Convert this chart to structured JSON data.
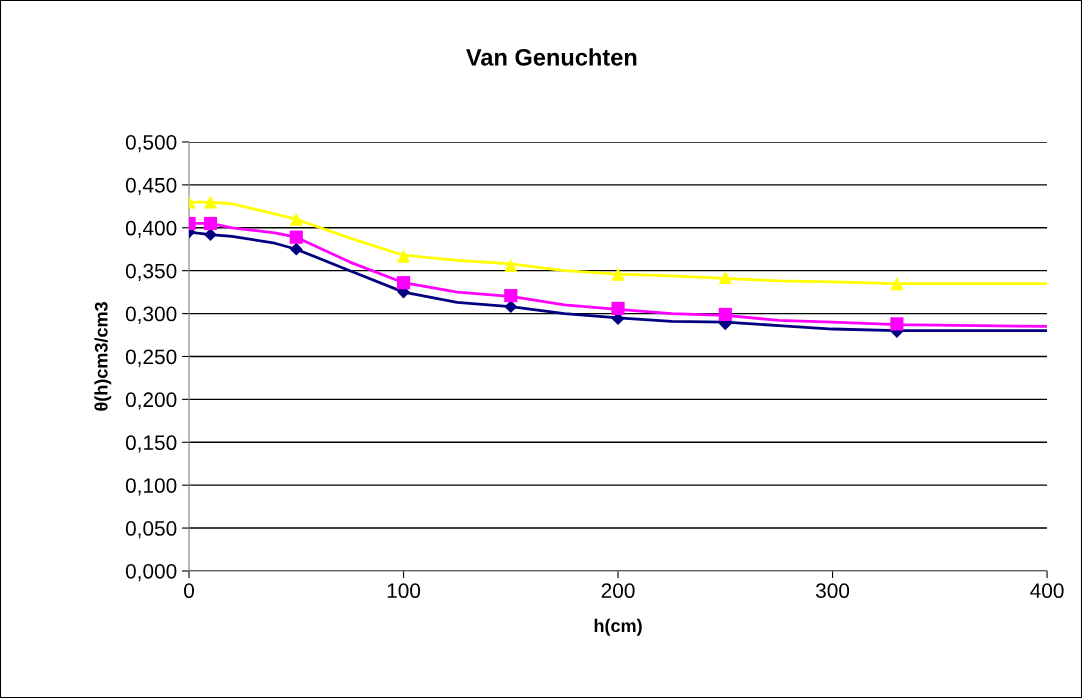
{
  "chart_data": {
    "type": "scatter",
    "title": "Van Genuchten",
    "xlabel": "h(cm)",
    "ylabel": "θ(h)cm3/cm3",
    "xlim": [
      0,
      400
    ],
    "xticks": [
      0,
      100,
      200,
      300,
      400
    ],
    "ylim": [
      0,
      0.5
    ],
    "yticks": [
      {
        "value": 0,
        "label": "0,000"
      },
      {
        "value": 0.05,
        "label": "0,050"
      },
      {
        "value": 0.1,
        "label": "0,100"
      },
      {
        "value": 0.15,
        "label": "0,150"
      },
      {
        "value": 0.2,
        "label": "0,200"
      },
      {
        "value": 0.25,
        "label": "0,250"
      },
      {
        "value": 0.3,
        "label": "0,300"
      },
      {
        "value": 0.35,
        "label": "0,350"
      },
      {
        "value": 0.4,
        "label": "0,400"
      },
      {
        "value": 0.45,
        "label": "0,450"
      },
      {
        "value": 0.5,
        "label": "0,500"
      }
    ],
    "grid": "y",
    "legend": false,
    "series": [
      {
        "type": "line",
        "marker": "none",
        "color": "#000080",
        "x": [
          0,
          10,
          20,
          40,
          50,
          75,
          100,
          125,
          150,
          175,
          200,
          225,
          250,
          275,
          300,
          330,
          400
        ],
        "values": [
          0.395,
          0.392,
          0.39,
          0.382,
          0.375,
          0.35,
          0.325,
          0.313,
          0.308,
          0.3,
          0.295,
          0.291,
          0.29,
          0.286,
          0.282,
          0.28,
          0.28
        ]
      },
      {
        "type": "line",
        "marker": "none",
        "color": "#ff00ff",
        "x": [
          0,
          10,
          20,
          40,
          50,
          75,
          100,
          125,
          150,
          175,
          200,
          225,
          250,
          275,
          300,
          330,
          400
        ],
        "values": [
          0.405,
          0.405,
          0.4,
          0.394,
          0.389,
          0.36,
          0.336,
          0.325,
          0.32,
          0.31,
          0.305,
          0.3,
          0.298,
          0.292,
          0.29,
          0.287,
          0.285
        ]
      },
      {
        "type": "line",
        "marker": "none",
        "color": "#ffff00",
        "x": [
          0,
          10,
          20,
          50,
          75,
          100,
          125,
          150,
          175,
          200,
          225,
          250,
          275,
          300,
          330,
          400
        ],
        "values": [
          0.43,
          0.43,
          0.428,
          0.41,
          0.388,
          0.368,
          0.362,
          0.358,
          0.35,
          0.346,
          0.344,
          0.341,
          0.338,
          0.337,
          0.335,
          0.335
        ]
      },
      {
        "marker": "diamond",
        "color": "#000080",
        "x": [
          0,
          10,
          50,
          100,
          150,
          200,
          250,
          330
        ],
        "values": [
          0.395,
          0.392,
          0.375,
          0.325,
          0.308,
          0.294,
          0.288,
          0.279
        ]
      },
      {
        "marker": "square",
        "color": "#ff00ff",
        "x": [
          0,
          10,
          50,
          100,
          150,
          200,
          250,
          330
        ],
        "values": [
          0.405,
          0.405,
          0.389,
          0.336,
          0.321,
          0.306,
          0.299,
          0.288
        ]
      },
      {
        "marker": "triangle",
        "color": "#ffff00",
        "x": [
          0,
          10,
          50,
          100,
          150,
          200,
          250,
          330
        ],
        "values": [
          0.43,
          0.43,
          0.41,
          0.367,
          0.356,
          0.346,
          0.342,
          0.335
        ]
      }
    ]
  }
}
